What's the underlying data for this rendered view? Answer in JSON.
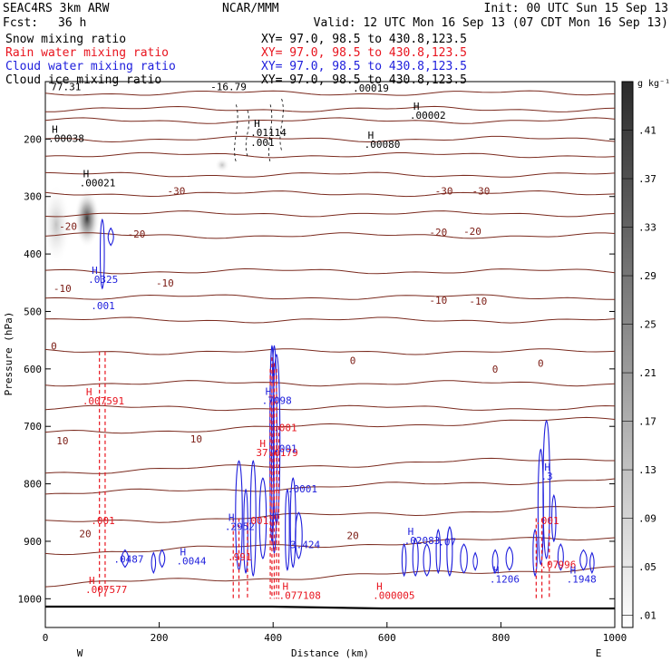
{
  "header": {
    "model": "SEAC4RS  3km ARW",
    "institution": "NCAR/MMM",
    "init": "Init: 00 UTC Sun 15 Sep 13",
    "fcst_label": "Fcst:",
    "fcst_value": "36 h",
    "valid": "Valid: 12 UTC Mon 16 Sep 13 (07 CDT Mon 16 Sep 13)"
  },
  "fields": [
    {
      "name": "Snow mixing ratio",
      "color": "#000000",
      "xy": "XY=  97.0, 98.5 to 430.8,123.5"
    },
    {
      "name": "Rain water mixing ratio",
      "color": "#e8141e",
      "xy": "XY=  97.0, 98.5 to 430.8,123.5"
    },
    {
      "name": "Cloud water mixing ratio",
      "color": "#1e1edc",
      "xy": "XY=  97.0, 98.5 to 430.8,123.5"
    },
    {
      "name": "Cloud ice mixing ratio",
      "color": "#000000",
      "xy": "XY=  97.0, 98.5 to 430.8,123.5"
    }
  ],
  "chart_data": {
    "type": "cross-section",
    "xlabel": "Distance (km)",
    "ylabel": "Pressure (hPa)",
    "xlim": [
      0,
      1000
    ],
    "ylim": [
      1050,
      100
    ],
    "x_ticks": [
      0,
      200,
      400,
      600,
      800,
      1000
    ],
    "y_ticks": [
      200,
      300,
      400,
      500,
      600,
      700,
      800,
      900,
      1000
    ],
    "x_end_labels": {
      "left": "W",
      "right": "E"
    },
    "colorbar": {
      "unit": "g kg⁻¹",
      "ticks": [
        0.01,
        0.05,
        0.09,
        0.13,
        0.17,
        0.21,
        0.25,
        0.29,
        0.33,
        0.37,
        0.41
      ],
      "tick_labels": [
        ".01",
        ".05",
        ".09",
        ".13",
        ".17",
        ".21",
        ".25",
        ".29",
        ".33",
        ".37",
        ".41"
      ],
      "max": 0.45
    },
    "temperature_labels": [
      {
        "x": 230,
        "p": 290,
        "text": "-30"
      },
      {
        "x": 700,
        "p": 290,
        "text": "-30"
      },
      {
        "x": 765,
        "p": 290,
        "text": "-30"
      },
      {
        "x": 160,
        "p": 365,
        "text": "-20"
      },
      {
        "x": 40,
        "p": 352,
        "text": "-20"
      },
      {
        "x": 690,
        "p": 362,
        "text": "-20"
      },
      {
        "x": 750,
        "p": 360,
        "text": "-20"
      },
      {
        "x": 210,
        "p": 450,
        "text": "-10"
      },
      {
        "x": 30,
        "p": 460,
        "text": "-10"
      },
      {
        "x": 690,
        "p": 480,
        "text": "-10"
      },
      {
        "x": 760,
        "p": 482,
        "text": "-10"
      },
      {
        "x": 15,
        "p": 560,
        "text": "0"
      },
      {
        "x": 540,
        "p": 585,
        "text": "0"
      },
      {
        "x": 790,
        "p": 600,
        "text": "0"
      },
      {
        "x": 870,
        "p": 590,
        "text": "0"
      },
      {
        "x": 30,
        "p": 725,
        "text": "10"
      },
      {
        "x": 265,
        "p": 722,
        "text": "10"
      },
      {
        "x": 70,
        "p": 887,
        "text": "20"
      },
      {
        "x": 540,
        "p": 890,
        "text": "20"
      }
    ],
    "isotherms_p": [
      120,
      148,
      168,
      200,
      228,
      262,
      295,
      330,
      368,
      430,
      475,
      515,
      570,
      625,
      668,
      712,
      780,
      818,
      868,
      920,
      975
    ],
    "freezing_level_p": 565,
    "annotations": [
      {
        "x": 10,
        "p": 115,
        "text": "77.31",
        "color": "#000000"
      },
      {
        "x": 290,
        "p": 115,
        "text": "-16.79",
        "color": "#000000"
      },
      {
        "x": 540,
        "p": 117,
        "text": ".00019",
        "color": "#000000"
      },
      {
        "x": 640,
        "p": 165,
        "text": ".00002",
        "color": "#000000",
        "h": true
      },
      {
        "x": 360,
        "p": 195,
        "text": ".01114",
        "color": "#000000",
        "h": true
      },
      {
        "x": 5,
        "p": 205,
        "text": ".00038",
        "color": "#000000",
        "h": true
      },
      {
        "x": 560,
        "p": 215,
        "text": ".00080",
        "color": "#000000",
        "h": true
      },
      {
        "x": 360,
        "p": 212,
        "text": ".001",
        "color": "#000000"
      },
      {
        "x": 60,
        "p": 282,
        "text": ".00021",
        "color": "#000000",
        "h": true
      },
      {
        "x": 75,
        "p": 450,
        "text": ".0325",
        "color": "#1e1edc",
        "h": true
      },
      {
        "x": 80,
        "p": 496,
        "text": ".001",
        "color": "#1e1edc"
      },
      {
        "x": 65,
        "p": 662,
        "text": ".007591",
        "color": "#e8141e",
        "h": true
      },
      {
        "x": 380,
        "p": 661,
        "text": ".7098",
        "color": "#1e1edc",
        "h": true
      },
      {
        "x": 400,
        "p": 708,
        "text": ".001",
        "color": "#e8141e"
      },
      {
        "x": 370,
        "p": 752,
        "text": "37.0179",
        "color": "#e8141e",
        "h": true
      },
      {
        "x": 400,
        "p": 745,
        "text": ".001",
        "color": "#1e1edc"
      },
      {
        "x": 425,
        "p": 815,
        "text": ".0001",
        "color": "#1e1edc"
      },
      {
        "x": 315,
        "p": 880,
        "text": ".2952",
        "color": "#1e1edc",
        "h": true
      },
      {
        "x": 350,
        "p": 870,
        "text": ".001",
        "color": "#e8141e"
      },
      {
        "x": 80,
        "p": 870,
        "text": ".001",
        "color": "#e8141e"
      },
      {
        "x": 320,
        "p": 933,
        "text": ".991",
        "color": "#e8141e"
      },
      {
        "x": 430,
        "p": 912,
        "text": "3.424",
        "color": "#1e1edc"
      },
      {
        "x": 120,
        "p": 937,
        "text": ".0487",
        "color": "#1e1edc"
      },
      {
        "x": 230,
        "p": 940,
        "text": ".0044",
        "color": "#1e1edc",
        "h": true
      },
      {
        "x": 630,
        "p": 905,
        "text": ".02083",
        "color": "#1e1edc",
        "h": true
      },
      {
        "x": 690,
        "p": 907,
        "text": ".07",
        "color": "#1e1edc"
      },
      {
        "x": 870,
        "p": 793,
        "text": ".3",
        "color": "#1e1edc",
        "h": true
      },
      {
        "x": 860,
        "p": 870,
        "text": ".001",
        "color": "#e8141e"
      },
      {
        "x": 870,
        "p": 947,
        "text": ".07",
        "color": "#e8141e"
      },
      {
        "x": 890,
        "p": 947,
        "text": ".996",
        "color": "#e8141e"
      },
      {
        "x": 780,
        "p": 972,
        "text": ".1206",
        "color": "#1e1edc",
        "h": true
      },
      {
        "x": 915,
        "p": 972,
        "text": ".1948",
        "color": "#1e1edc",
        "h": true
      },
      {
        "x": 70,
        "p": 990,
        "text": ".007577",
        "color": "#e8141e",
        "h": true
      },
      {
        "x": 410,
        "p": 1000,
        "text": ".077108",
        "color": "#e8141e",
        "h": true
      },
      {
        "x": 575,
        "p": 1000,
        "text": ".000005",
        "color": "#e8141e",
        "h": true
      }
    ]
  }
}
